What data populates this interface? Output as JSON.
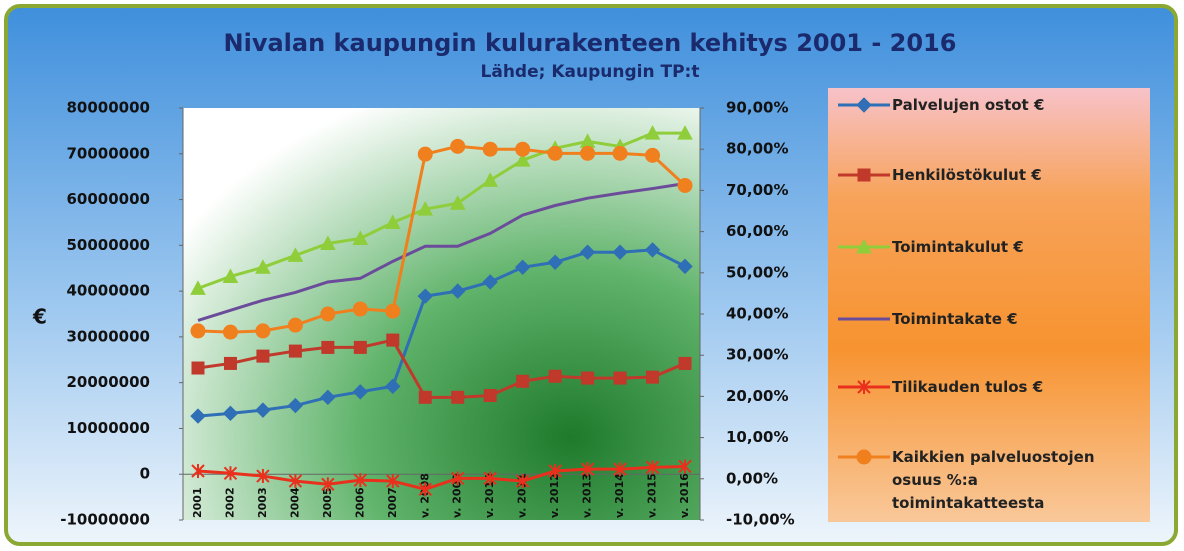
{
  "chart_data": {
    "type": "line",
    "title": "Nivalan kaupungin kulurakenteen kehitys 2001 - 2016",
    "subtitle": "Lähde; Kaupungin TP:t",
    "y_label": "€",
    "categories": [
      "2001",
      "2002",
      "2003",
      "2004",
      "2005",
      "2006",
      "2007",
      "v. 2008",
      "v. 2009",
      "v. 2010",
      "v. 2011",
      "v. 2012",
      "v. 2013",
      "v. 2014",
      "v. 2015",
      "v. 2016"
    ],
    "ylim": [
      -10000000,
      80000000
    ],
    "yticks": [
      -10000000,
      0,
      10000000,
      20000000,
      30000000,
      40000000,
      50000000,
      60000000,
      70000000,
      80000000
    ],
    "y2lim": [
      -10,
      90
    ],
    "y2ticks": [
      {
        "value": -10,
        "label": "-10,00%"
      },
      {
        "value": 0,
        "label": "0,00%"
      },
      {
        "value": 10,
        "label": "10,00%"
      },
      {
        "value": 20,
        "label": "20,00%"
      },
      {
        "value": 30,
        "label": "30,00%"
      },
      {
        "value": 40,
        "label": "40,00%"
      },
      {
        "value": 50,
        "label": "50,00%"
      },
      {
        "value": 60,
        "label": "60,00%"
      },
      {
        "value": 70,
        "label": "70,00%"
      },
      {
        "value": 80,
        "label": "80,00%"
      },
      {
        "value": 90,
        "label": "90,00%"
      }
    ],
    "series": [
      {
        "name": "Palvelujen ostot €",
        "color": "#2f6fb5",
        "marker": "diamond",
        "values": [
          12700000,
          13300000,
          14000000,
          15000000,
          16800000,
          18000000,
          19200000,
          38900000,
          40000000,
          42000000,
          45200000,
          46300000,
          48500000,
          48500000,
          49000000,
          45400000
        ]
      },
      {
        "name": "Henkilöstökulut €",
        "color": "#c0392b",
        "marker": "square",
        "values": [
          23200000,
          24200000,
          25800000,
          26900000,
          27700000,
          27700000,
          29300000,
          16800000,
          16800000,
          17200000,
          20300000,
          21400000,
          21000000,
          21000000,
          21200000,
          24200000
        ]
      },
      {
        "name": "Toimintakulut €",
        "color": "#8fce3a",
        "marker": "triangle",
        "values": [
          40600000,
          43200000,
          45200000,
          47800000,
          50400000,
          51500000,
          55000000,
          57900000,
          59200000,
          64200000,
          68600000,
          71200000,
          72700000,
          71600000,
          74500000,
          74500000
        ]
      },
      {
        "name": "Toimintakate €",
        "color": "#6b4c9a",
        "marker": "none",
        "values": [
          33600000,
          35800000,
          38000000,
          39700000,
          42000000,
          42800000,
          46500000,
          49800000,
          49800000,
          52600000,
          56600000,
          58700000,
          60300000,
          61400000,
          62400000,
          63500000
        ]
      },
      {
        "name": "Tilikauden tulos €",
        "color": "#e8301c",
        "marker": "x",
        "values": [
          700000,
          200000,
          -400000,
          -1500000,
          -2200000,
          -1300000,
          -1500000,
          -3300000,
          -900000,
          -900000,
          -1500000,
          700000,
          1100000,
          1100000,
          1500000,
          1700000
        ]
      },
      {
        "name": "Kaikkien palveluostojen osuus %:a toimintakatteesta",
        "color": "#f07f1e",
        "marker": "circle",
        "axis": "y2",
        "values": [
          35.9,
          35.6,
          35.9,
          37.3,
          40.0,
          41.2,
          40.7,
          78.8,
          80.7,
          80.0,
          80.0,
          79.0,
          79.0,
          79.0,
          78.5,
          71.2
        ]
      }
    ]
  }
}
